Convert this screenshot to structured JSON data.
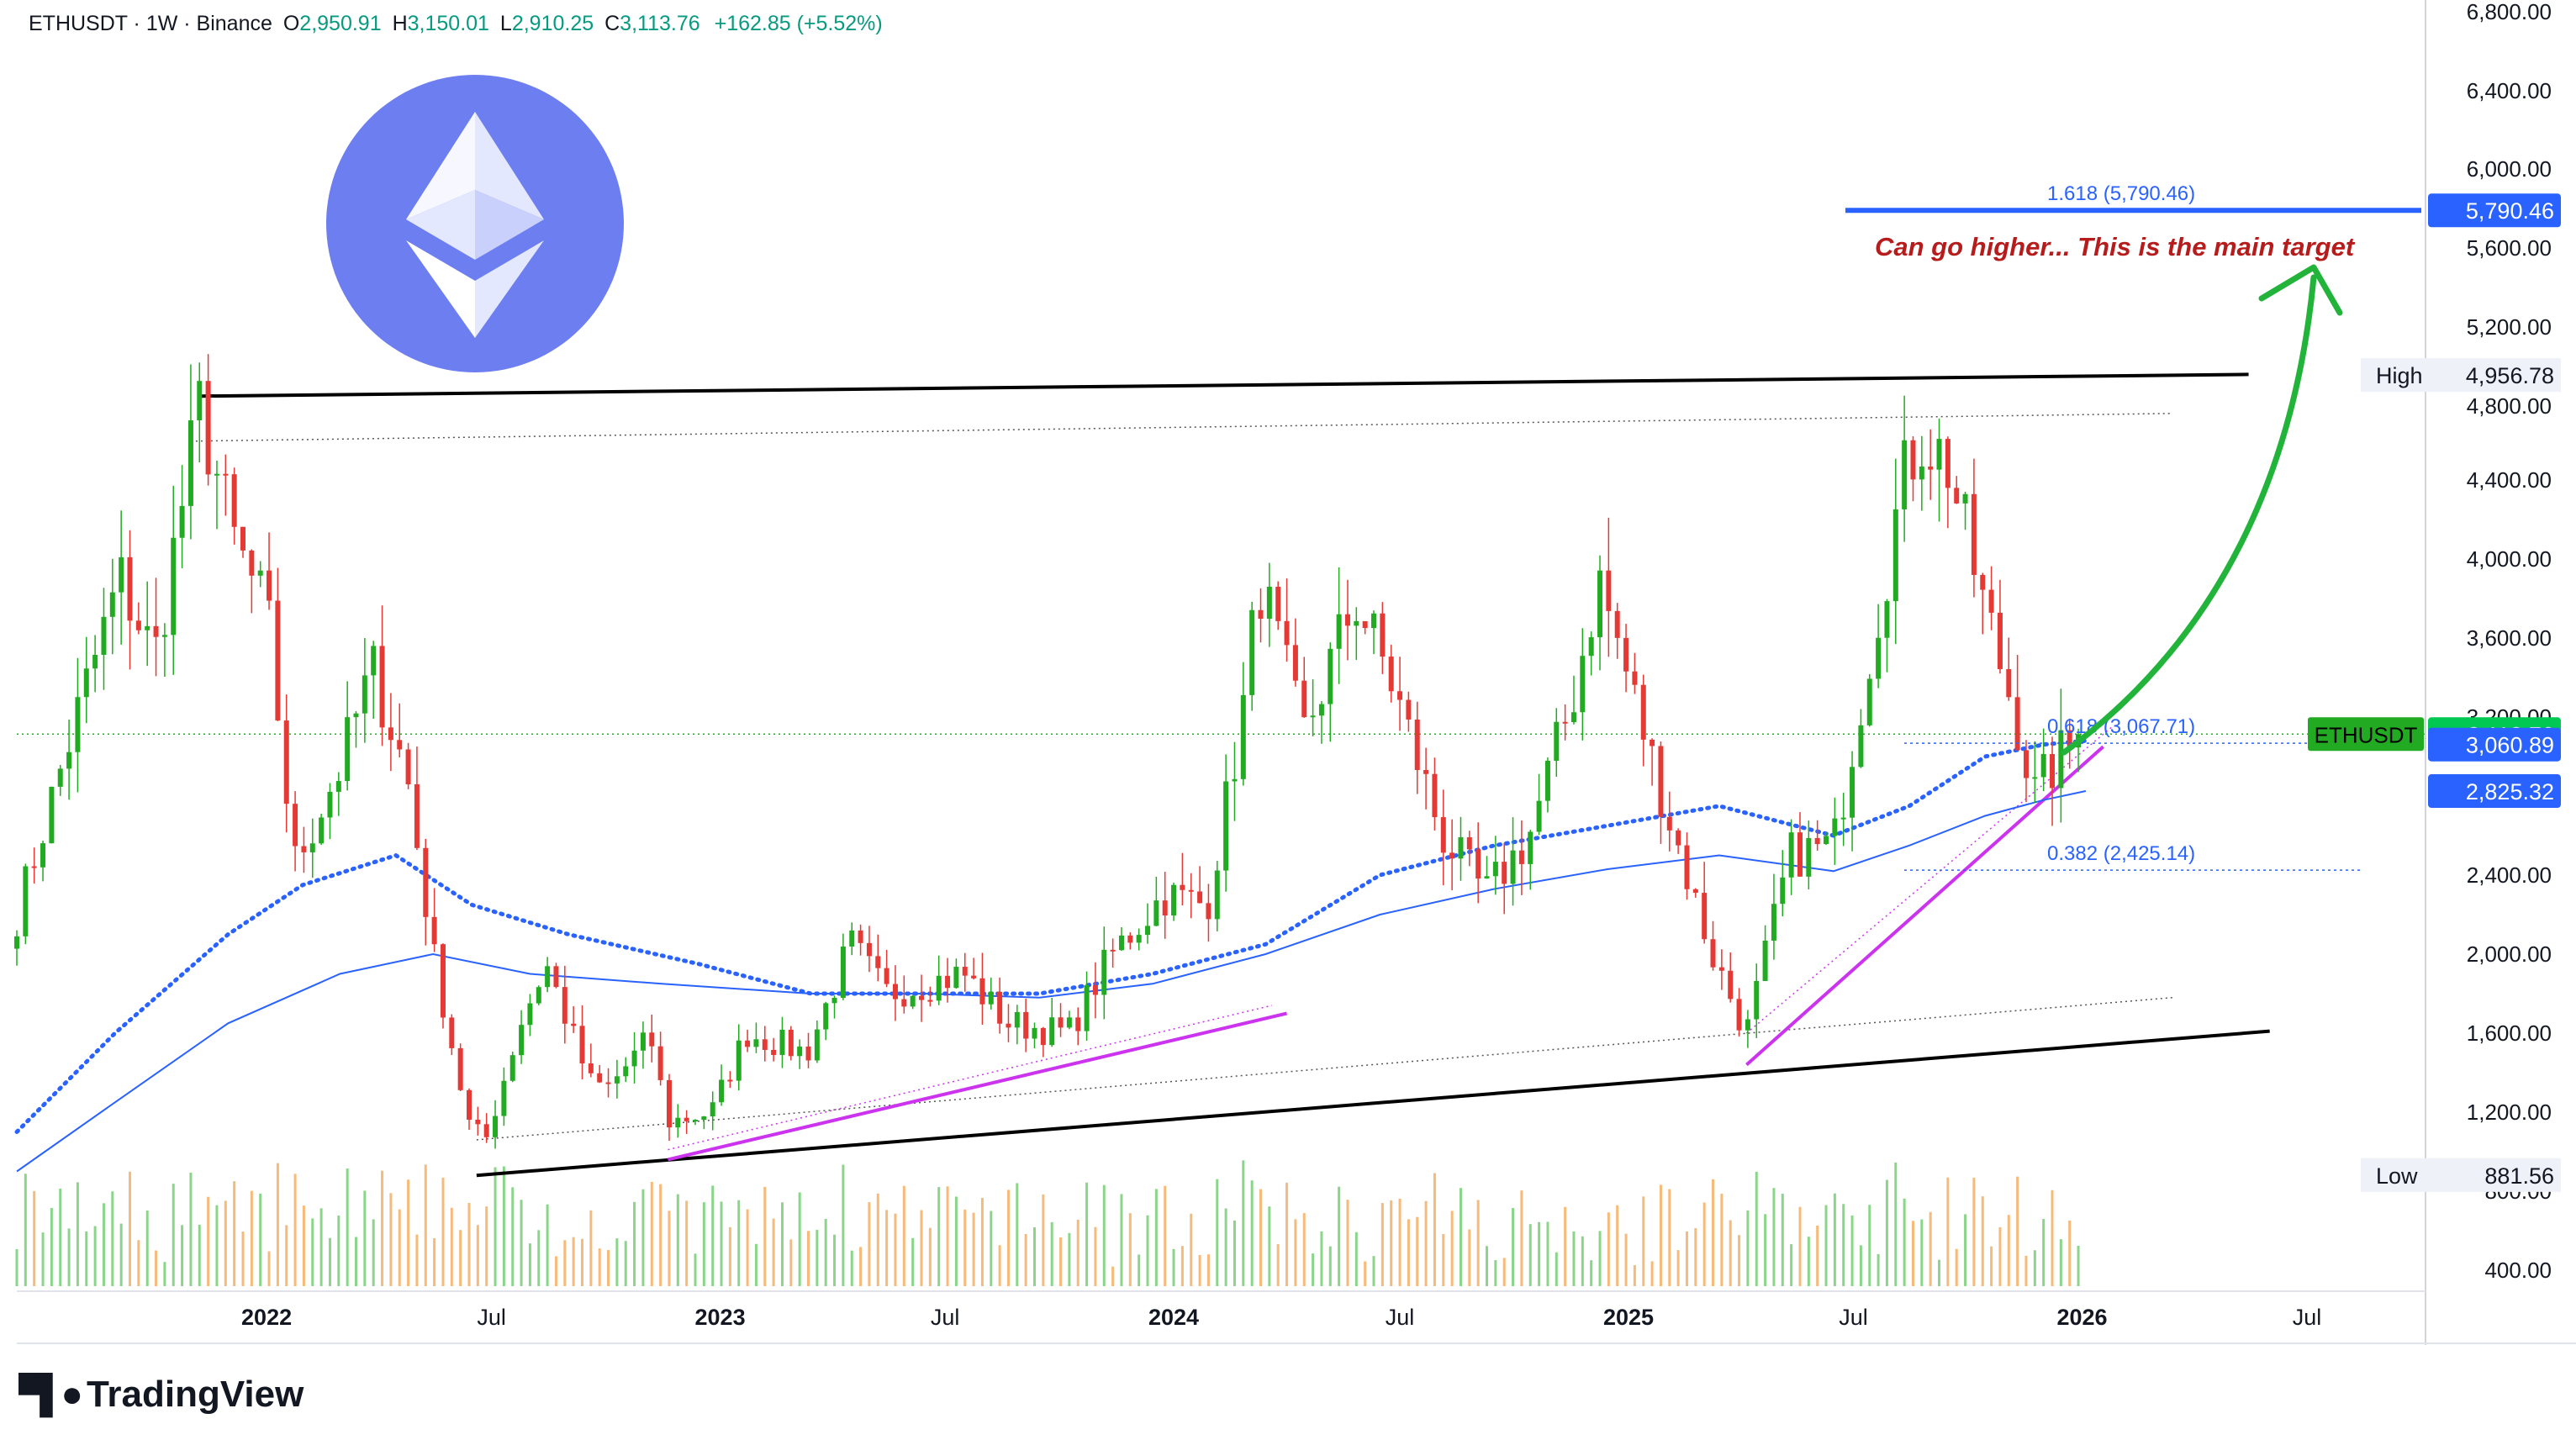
{
  "header": {
    "symbol_line": "ETHUSDT · 1W · Binance",
    "o_label": "O",
    "o": "2,950.91",
    "h_label": "H",
    "h": "3,150.01",
    "l_label": "L",
    "l": "2,910.25",
    "c_label": "C",
    "c": "3,113.76",
    "change": "+162.85 (+5.52%)"
  },
  "branding": {
    "logo_text": "TradingView",
    "logo_icon": "tradingview-logo-icon"
  },
  "chart_data": {
    "type": "candlestick",
    "symbol": "ETHUSDT",
    "interval": "1W",
    "exchange": "Binance",
    "price_scale": {
      "min": 400,
      "max": 6800,
      "ticks": [
        "6,800.00",
        "6,400.00",
        "6,000.00",
        "5,600.00",
        "5,200.00",
        "4,800.00",
        "4,400.00",
        "4,000.00",
        "3,600.00",
        "3,200.00",
        "2,400.00",
        "2,000.00",
        "1,600.00",
        "1,200.00",
        "800.00",
        "400.00"
      ]
    },
    "time_axis": {
      "start": "2021-06",
      "end": "2026-10",
      "labels": [
        {
          "label": "2022",
          "date": "2022-01-01",
          "bold": true
        },
        {
          "label": "Jul",
          "date": "2022-07-01",
          "bold": false
        },
        {
          "label": "2023",
          "date": "2023-01-01",
          "bold": true
        },
        {
          "label": "Jul",
          "date": "2023-07-01",
          "bold": false
        },
        {
          "label": "2024",
          "date": "2024-01-01",
          "bold": true
        },
        {
          "label": "Jul",
          "date": "2024-07-01",
          "bold": false
        },
        {
          "label": "2025",
          "date": "2025-01-01",
          "bold": true
        },
        {
          "label": "Jul",
          "date": "2025-07-01",
          "bold": false
        },
        {
          "label": "2026",
          "date": "2026-01-01",
          "bold": true
        },
        {
          "label": "Jul",
          "date": "2026-07-01",
          "bold": false
        }
      ]
    },
    "price_path": [
      [
        "2021-06-14",
        2200
      ],
      [
        "2021-08-01",
        3200
      ],
      [
        "2021-09-05",
        3900
      ],
      [
        "2021-10-03",
        3500
      ],
      [
        "2021-11-08",
        4780
      ],
      [
        "2021-12-05",
        4100
      ],
      [
        "2022-01-02",
        3700
      ],
      [
        "2022-01-23",
        2450
      ],
      [
        "2022-03-01",
        2950
      ],
      [
        "2022-03-27",
        3450
      ],
      [
        "2022-04-24",
        2900
      ],
      [
        "2022-05-15",
        2000
      ],
      [
        "2022-06-12",
        1150
      ],
      [
        "2022-06-26",
        1050
      ],
      [
        "2022-07-24",
        1650
      ],
      [
        "2022-08-14",
        1950
      ],
      [
        "2022-09-18",
        1350
      ],
      [
        "2022-10-02",
        1320
      ],
      [
        "2022-11-06",
        1580
      ],
      [
        "2022-11-20",
        1150
      ],
      [
        "2022-12-25",
        1200
      ],
      [
        "2023-01-22",
        1600
      ],
      [
        "2023-03-12",
        1500
      ],
      [
        "2023-04-16",
        2050
      ],
      [
        "2023-05-14",
        1800
      ],
      [
        "2023-07-16",
        1900
      ],
      [
        "2023-08-20",
        1650
      ],
      [
        "2023-10-08",
        1600
      ],
      [
        "2023-11-12",
        2000
      ],
      [
        "2023-12-24",
        2300
      ],
      [
        "2024-01-28",
        2250
      ],
      [
        "2024-02-25",
        3200
      ],
      [
        "2024-03-10",
        3900
      ],
      [
        "2024-04-14",
        3100
      ],
      [
        "2024-05-26",
        3800
      ],
      [
        "2024-06-23",
        3400
      ],
      [
        "2024-08-04",
        2600
      ],
      [
        "2024-09-08",
        2300
      ],
      [
        "2024-10-13",
        2600
      ],
      [
        "2024-11-17",
        3300
      ],
      [
        "2024-12-08",
        3900
      ],
      [
        "2025-01-05",
        3300
      ],
      [
        "2025-02-02",
        2700
      ],
      [
        "2025-03-09",
        2000
      ],
      [
        "2025-04-06",
        1600
      ],
      [
        "2025-05-11",
        2500
      ],
      [
        "2025-06-15",
        2550
      ],
      [
        "2025-07-13",
        3500
      ],
      [
        "2025-08-10",
        4400
      ],
      [
        "2025-08-24",
        4650
      ],
      [
        "2025-09-14",
        4500
      ],
      [
        "2025-10-12",
        3800
      ],
      [
        "2025-11-09",
        3200
      ],
      [
        "2025-11-23",
        2800
      ],
      [
        "2025-12-14",
        3000
      ],
      [
        "2026-01-04",
        3113.76
      ]
    ],
    "ma_dotted": [
      [
        "2021-06-14",
        1100
      ],
      [
        "2021-09-01",
        1600
      ],
      [
        "2021-12-01",
        2100
      ],
      [
        "2022-01-30",
        2350
      ],
      [
        "2022-04-15",
        2500
      ],
      [
        "2022-06-15",
        2250
      ],
      [
        "2022-09-01",
        2100
      ],
      [
        "2022-12-15",
        1950
      ],
      [
        "2023-03-15",
        1800
      ],
      [
        "2023-06-15",
        1800
      ],
      [
        "2023-09-15",
        1800
      ],
      [
        "2023-12-15",
        1900
      ],
      [
        "2024-03-15",
        2050
      ],
      [
        "2024-06-15",
        2400
      ],
      [
        "2024-09-15",
        2550
      ],
      [
        "2024-12-15",
        2650
      ],
      [
        "2025-03-15",
        2750
      ],
      [
        "2025-06-15",
        2600
      ],
      [
        "2025-08-15",
        2750
      ],
      [
        "2025-10-15",
        3000
      ],
      [
        "2025-12-01",
        3060.89
      ],
      [
        "2026-01-04",
        3080
      ]
    ],
    "ma_solid": [
      [
        "2021-06-14",
        900
      ],
      [
        "2021-09-01",
        1250
      ],
      [
        "2021-12-01",
        1650
      ],
      [
        "2022-03-01",
        1900
      ],
      [
        "2022-05-15",
        2000
      ],
      [
        "2022-08-01",
        1900
      ],
      [
        "2022-11-15",
        1850
      ],
      [
        "2023-03-15",
        1800
      ],
      [
        "2023-06-15",
        1800
      ],
      [
        "2023-09-15",
        1780
      ],
      [
        "2023-12-15",
        1850
      ],
      [
        "2024-03-15",
        2000
      ],
      [
        "2024-06-15",
        2200
      ],
      [
        "2024-09-15",
        2330
      ],
      [
        "2024-12-15",
        2430
      ],
      [
        "2025-03-15",
        2500
      ],
      [
        "2025-06-15",
        2420
      ],
      [
        "2025-08-15",
        2550
      ],
      [
        "2025-10-15",
        2700
      ],
      [
        "2025-12-01",
        2780
      ],
      [
        "2026-01-04",
        2825.32
      ]
    ],
    "volume_bars": 236,
    "trendlines": [
      {
        "kind": "resistance",
        "from": [
          "2021-11-08",
          4850
        ],
        "to": [
          "2026-05-15",
          4960
        ]
      },
      {
        "kind": "support",
        "from": [
          "2022-06-19",
          880
        ],
        "to": [
          "2026-06-01",
          1610
        ]
      },
      {
        "kind": "high-dotted",
        "from": [
          "2021-11-01",
          4610
        ],
        "to": [
          "2026-03-15",
          4760
        ]
      },
      {
        "kind": "low-dotted",
        "from": [
          "2022-06-19",
          1060
        ],
        "to": [
          "2026-03-15",
          1780
        ]
      },
      {
        "kind": "rising-support-2023",
        "from": [
          "2022-11-20",
          960
        ],
        "to": [
          "2024-04-01",
          1700
        ]
      },
      {
        "kind": "rising-support-2025",
        "from": [
          "2025-04-06",
          1440
        ],
        "to": [
          "2026-01-18",
          3050
        ]
      }
    ],
    "fibonacci": [
      {
        "label": "1.618 (5,790.46)",
        "value": 5790.46
      },
      {
        "label": "0.618 (3,067.71)",
        "value": 3067.71
      },
      {
        "label": "0.382 (2,425.14)",
        "value": 2425.14
      }
    ],
    "annotation": "Can go higher... This is the main target",
    "price_labels": [
      {
        "label": "5,790.46",
        "value": 5790.46,
        "color": "#2962ff"
      },
      {
        "label": "3,113.76",
        "value": 3113.76,
        "color": "#00c853"
      },
      {
        "label": "3,060.89",
        "value": 3060.89,
        "color": "#2962ff"
      },
      {
        "label": "2,825.32",
        "value": 2825.32,
        "color": "#2962ff"
      }
    ],
    "symbol_badge": "ETHUSDT",
    "high": {
      "label": "High",
      "value": "4,956.78",
      "num": 4956.78
    },
    "low": {
      "label": "Low",
      "value": "881.56",
      "num": 881.56
    },
    "colors": {
      "up": "#22ab22",
      "down": "#e53935",
      "ma": "#2962ff",
      "fib": "#2962ff",
      "purple": "#cc33ee",
      "arrow": "#22b43a",
      "annotation": "#b71c1c",
      "eth_circle": "#6c7ef0"
    }
  }
}
